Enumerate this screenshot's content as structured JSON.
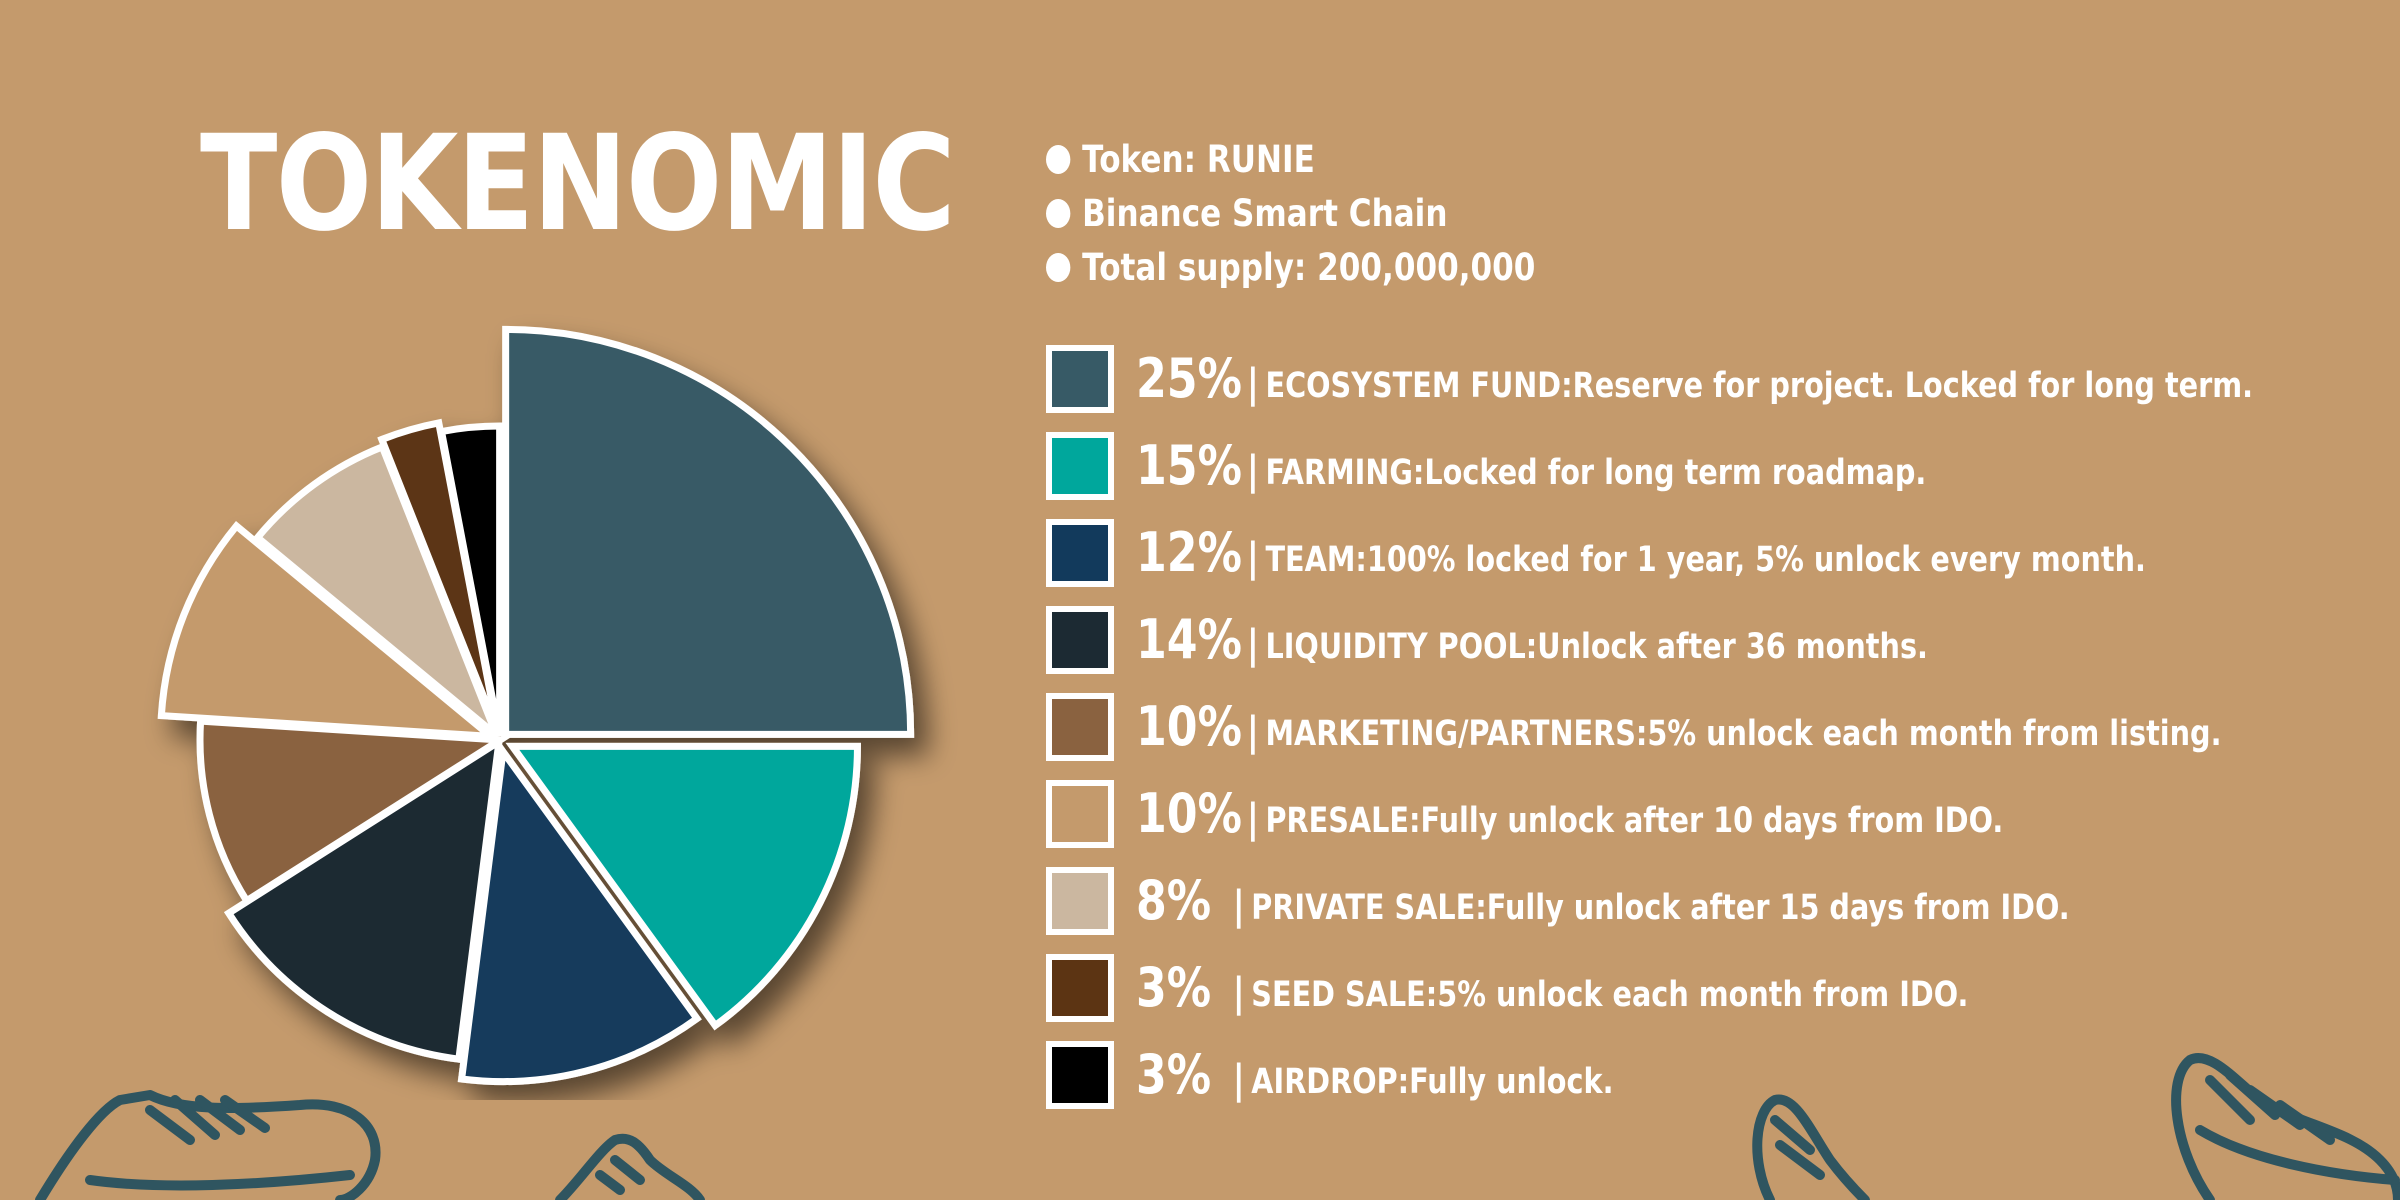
{
  "title": "TOKENOMIC",
  "info": [
    "Token: RUNIE",
    "Binance Smart Chain",
    "Total supply: 200,000,000"
  ],
  "legend": [
    {
      "pct": "25%",
      "category": "ECOSYSTEM FUND:",
      "desc": " Reserve for project. Locked for long term.",
      "color": "#375a66"
    },
    {
      "pct": "15%",
      "category": "FARMING:",
      "desc": " Locked for long term roadmap.",
      "color": "#00a79c"
    },
    {
      "pct": "12%",
      "category": "TEAM:",
      "desc": " 100% locked for 1 year, 5% unlock every month.",
      "color": "#123a5c"
    },
    {
      "pct": "14%",
      "category": "LIQUIDITY POOL:",
      "desc": " Unlock after 36 months.",
      "color": "#1c2a33"
    },
    {
      "pct": "10%",
      "category": "MARKETING/PARTNERS:",
      "desc": " 5% unlock each month from listing.",
      "color": "#8a6240"
    },
    {
      "pct": "10%",
      "category": "PRESALE:",
      "desc": " Fully unlock after 10 days from IDO.",
      "color": "#c49a6c"
    },
    {
      "pct": "8%",
      "category": "PRIVATE SALE:",
      "desc": " Fully unlock after 15 days from IDO.",
      "color": "#cbb7a0"
    },
    {
      "pct": "3%",
      "category": "SEED SALE:",
      "desc": " 5% unlock each month from IDO.",
      "color": "#5c3413"
    },
    {
      "pct": "3%",
      "category": "AIRDROP:",
      "desc": " Fully unlock.",
      "color": "#000000"
    }
  ],
  "separator": "|",
  "chart_data": {
    "type": "pie",
    "categories": [
      "ECOSYSTEM FUND",
      "FARMING",
      "TEAM",
      "LIQUIDITY POOL",
      "MARKETING/PARTNERS",
      "PRESALE",
      "PRIVATE SALE",
      "SEED SALE",
      "AIRDROP"
    ],
    "values": [
      25,
      15,
      12,
      14,
      10,
      10,
      8,
      3,
      3
    ],
    "colors": [
      "#375a66",
      "#00a79c",
      "#123a5c",
      "#1c2a33",
      "#8a6240",
      "#c49a6c",
      "#cbb7a0",
      "#5c3413",
      "#000000"
    ],
    "title": "TOKENOMIC",
    "legend_position": "right"
  },
  "colors": {
    "background": "#c49a6c",
    "text": "#ffffff",
    "decoration": "#2f5560"
  },
  "icons": [
    "bullet-dot-icon",
    "sneaker-icon"
  ]
}
